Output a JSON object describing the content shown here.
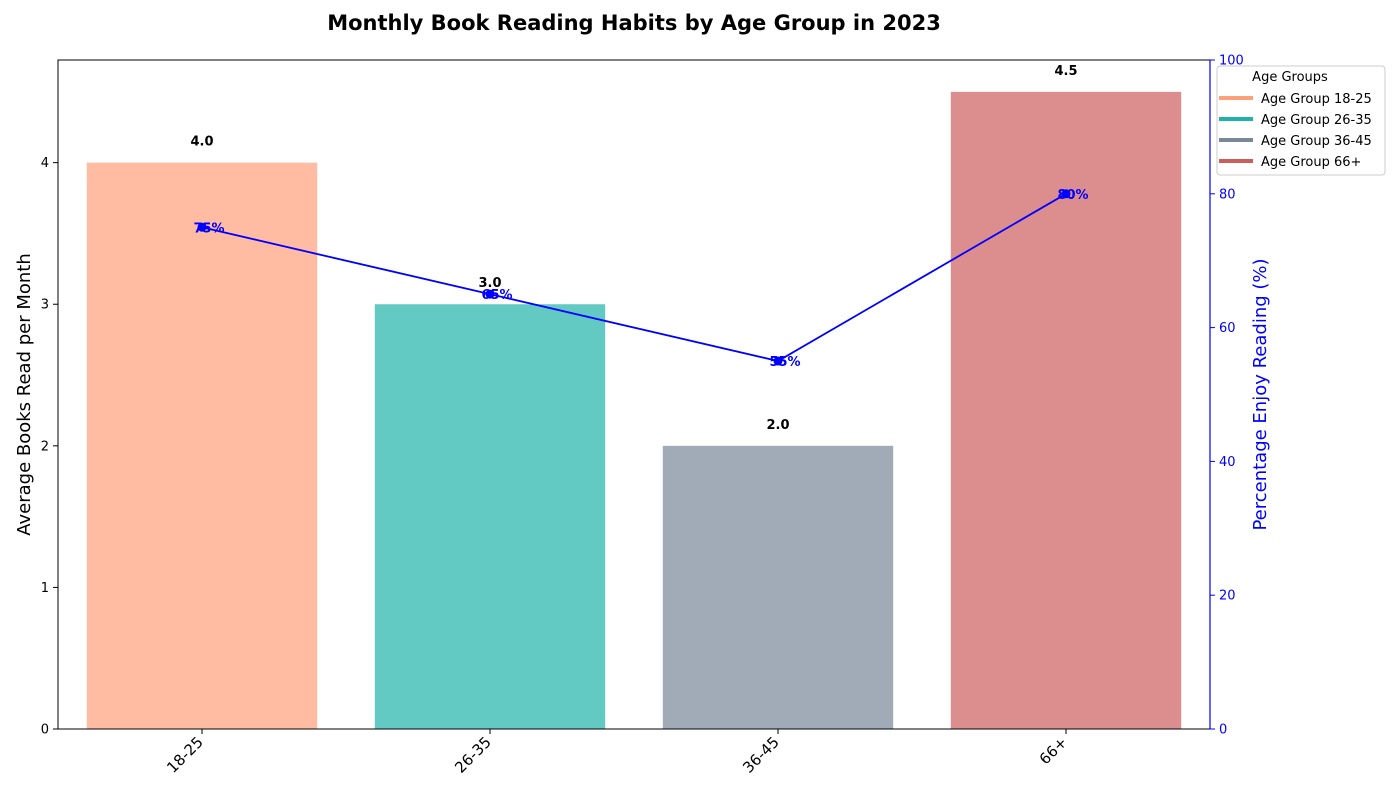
{
  "chart_data": {
    "type": "bar",
    "title": "Monthly Book Reading Habits by Age Group in 2023",
    "xlabel": "",
    "ylabel": "Average Books Read per Month",
    "y2label": "Percentage Enjoy Reading (%)",
    "categories": [
      "18-25",
      "26-35",
      "36-45",
      "66+"
    ],
    "bar_values": [
      4.0,
      3.0,
      2.0,
      4.5
    ],
    "bar_value_labels": [
      "4.0",
      "3.0",
      "2.0",
      "4.5"
    ],
    "bar_colors": [
      "#FFA07A",
      "#20B2AA",
      "#778899",
      "#CD5C5C"
    ],
    "line_values": [
      75,
      65,
      55,
      80
    ],
    "line_value_labels": [
      "75%",
      "65%",
      "55%",
      "80%"
    ],
    "line_color": "#0000FF",
    "ylim": [
      0,
      4.725
    ],
    "y_ticks": [
      0,
      1,
      2,
      3,
      4
    ],
    "y2lim": [
      0,
      100
    ],
    "y2_ticks": [
      0,
      20,
      40,
      60,
      80,
      100
    ],
    "grid": false,
    "legend": {
      "title": "Age Groups",
      "placement": "upper-right-outside",
      "entries": [
        "Age Group 18-25",
        "Age Group 26-35",
        "Age Group 36-45",
        "Age Group 66+"
      ]
    }
  }
}
